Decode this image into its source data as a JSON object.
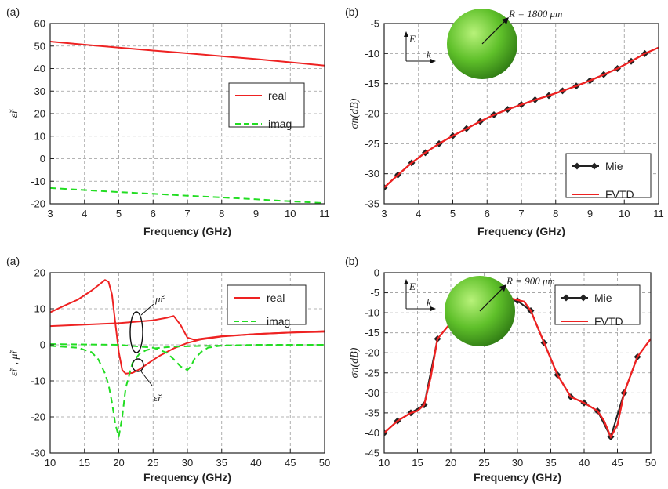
{
  "chart_data": [
    {
      "type": "line",
      "panel_label": "(a)",
      "xlabel": "Frequency (GHz)",
      "ylabel": "ε̆r",
      "xlim": [
        3,
        11
      ],
      "ylim": [
        -20,
        60
      ],
      "xticks": [
        3,
        4,
        5,
        6,
        7,
        8,
        9,
        10,
        11
      ],
      "yticks": [
        -20,
        -10,
        0,
        10,
        20,
        30,
        40,
        50,
        60
      ],
      "grid": true,
      "legend_position": "center-right",
      "series": [
        {
          "name": "real",
          "color": "#ee2222",
          "dash": "solid",
          "x": [
            3,
            4,
            5,
            6,
            7,
            8,
            9,
            10,
            11
          ],
          "y": [
            52,
            50.6,
            49.3,
            48,
            46.8,
            45.5,
            44.2,
            42.8,
            41.3
          ]
        },
        {
          "name": "imag",
          "color": "#22dd22",
          "dash": "dashed",
          "x": [
            3,
            4,
            5,
            6,
            7,
            8,
            9,
            10,
            11
          ],
          "y": [
            -13,
            -13.9,
            -14.8,
            -15.6,
            -16.4,
            -17.2,
            -18,
            -18.9,
            -19.7
          ]
        }
      ]
    },
    {
      "type": "line",
      "panel_label": "(b)",
      "xlabel": "Frequency (GHz)",
      "ylabel": "σn(dB)",
      "xlim": [
        3,
        11
      ],
      "ylim": [
        -35,
        -5
      ],
      "xticks": [
        3,
        4,
        5,
        6,
        7,
        8,
        9,
        10,
        11
      ],
      "yticks": [
        -35,
        -30,
        -25,
        -20,
        -15,
        -10,
        -5
      ],
      "grid": true,
      "legend_position": "bottom-right",
      "annotation": "R = 1800 μm",
      "inset": {
        "e_label": "E",
        "k_label": "k"
      },
      "series": [
        {
          "name": "Mie",
          "color": "#222222",
          "marker": "diamond",
          "x": [
            3,
            3.4,
            3.8,
            4.2,
            4.6,
            5,
            5.4,
            5.8,
            6.2,
            6.6,
            7,
            7.4,
            7.8,
            8.2,
            8.6,
            9,
            9.4,
            9.8,
            10.2,
            10.6
          ],
          "y": [
            -32.3,
            -30.2,
            -28.2,
            -26.5,
            -25,
            -23.7,
            -22.5,
            -21.3,
            -20.2,
            -19.3,
            -18.5,
            -17.7,
            -17,
            -16.2,
            -15.4,
            -14.5,
            -13.5,
            -12.5,
            -11.3,
            -10
          ]
        },
        {
          "name": "FVTD",
          "color": "#ee2222",
          "dash": "solid",
          "x": [
            3,
            3.4,
            3.8,
            4.2,
            4.6,
            5,
            5.4,
            5.8,
            6.2,
            6.6,
            7,
            7.4,
            7.8,
            8.2,
            8.6,
            9,
            9.4,
            9.8,
            10.2,
            10.6,
            11
          ],
          "y": [
            -32.3,
            -30.2,
            -28.2,
            -26.5,
            -25,
            -23.7,
            -22.5,
            -21.3,
            -20.2,
            -19.3,
            -18.5,
            -17.7,
            -17,
            -16.2,
            -15.4,
            -14.5,
            -13.5,
            -12.5,
            -11.3,
            -10,
            -9
          ]
        }
      ]
    },
    {
      "type": "line",
      "panel_label": "(a)",
      "xlabel": "Frequency (GHz)",
      "ylabel": "ε̆r , μ̆r",
      "xlim": [
        10,
        50
      ],
      "ylim": [
        -30,
        20
      ],
      "xticks": [
        10,
        15,
        20,
        25,
        30,
        35,
        40,
        45,
        50
      ],
      "yticks": [
        -30,
        -20,
        -10,
        0,
        10,
        20
      ],
      "grid": true,
      "legend_position": "top-right",
      "annotations": [
        "μ̆r",
        "ε̆r"
      ],
      "series": [
        {
          "name": "real",
          "color": "#ee2222",
          "dash": "solid",
          "x": [
            10,
            12,
            14,
            16,
            17,
            18,
            18.5,
            19,
            19.5,
            20,
            20.5,
            21,
            22,
            23,
            24,
            25,
            26,
            28,
            30,
            32,
            35,
            40,
            45,
            50
          ],
          "y": [
            9,
            10.8,
            12.5,
            15,
            16.5,
            18,
            17.5,
            14,
            6,
            -2,
            -7,
            -8,
            -7.8,
            -6.8,
            -5.5,
            -4.2,
            -3,
            -1,
            0.5,
            1.5,
            2.3,
            3,
            3.4,
            3.6
          ]
        },
        {
          "name": "",
          "color": "#ee2222",
          "dash": "solid",
          "x": [
            10,
            15,
            20,
            25,
            27,
            28,
            29,
            30,
            31,
            32,
            35,
            40,
            45,
            50
          ],
          "y": [
            5.2,
            5.6,
            6,
            6.8,
            7.5,
            8,
            5.5,
            2,
            1.4,
            1.7,
            2.4,
            3,
            3.4,
            3.8
          ]
        },
        {
          "name": "imag",
          "color": "#22dd22",
          "dash": "dashed",
          "x": [
            10,
            14,
            16,
            17,
            18,
            18.5,
            19,
            19.5,
            20,
            20.5,
            21,
            22,
            23,
            24,
            25,
            28,
            32,
            40,
            50
          ],
          "y": [
            -0.3,
            -0.8,
            -2,
            -4,
            -8,
            -11,
            -16,
            -22,
            -25.5,
            -20,
            -12,
            -5,
            -2.5,
            -1.5,
            -1,
            -0.5,
            -0.3,
            -0.1,
            0
          ]
        },
        {
          "name": "",
          "color": "#22dd22",
          "dash": "dashed",
          "x": [
            10,
            20,
            25,
            27,
            28,
            29,
            30,
            30.5,
            31,
            32,
            33,
            35,
            40,
            50
          ],
          "y": [
            0.2,
            0,
            -0.8,
            -2.2,
            -4,
            -6,
            -7,
            -6,
            -4,
            -2,
            -0.8,
            -0.2,
            0,
            0
          ]
        }
      ]
    },
    {
      "type": "line",
      "panel_label": "(b)",
      "xlabel": "Frequency (GHz)",
      "ylabel": "σn(dB)",
      "xlim": [
        10,
        50
      ],
      "ylim": [
        -45,
        0
      ],
      "xticks": [
        10,
        15,
        20,
        25,
        30,
        35,
        40,
        45,
        50
      ],
      "yticks": [
        -45,
        -40,
        -35,
        -30,
        -25,
        -20,
        -15,
        -10,
        -5,
        0
      ],
      "grid": true,
      "legend_position": "top-right",
      "annotation": "R = 900 μm",
      "inset": {
        "e_label": "E",
        "k_label": "k"
      },
      "series": [
        {
          "name": "Mie",
          "color": "#222222",
          "marker": "diamond",
          "x": [
            10,
            12,
            14,
            16,
            18,
            20,
            22,
            24,
            26,
            28,
            30,
            32,
            34,
            36,
            38,
            40,
            42,
            44,
            46,
            48
          ],
          "y": [
            -40,
            -37,
            -35,
            -33,
            -16.5,
            -12.5,
            -7.5,
            -2,
            -3.5,
            -6,
            -7,
            -9.5,
            -17.5,
            -25.5,
            -31,
            -32.5,
            -34.5,
            -41,
            -30,
            -21
          ]
        },
        {
          "name": "FVTD",
          "color": "#ee2222",
          "dash": "solid",
          "x": [
            10,
            12,
            14,
            15,
            16,
            17,
            18,
            20,
            22,
            24,
            25,
            26,
            28,
            30,
            31,
            32,
            34,
            36,
            38,
            40,
            42,
            43,
            44,
            45,
            46,
            48,
            50
          ],
          "y": [
            -40,
            -37,
            -35,
            -34.5,
            -33,
            -26,
            -16.5,
            -12.5,
            -7.5,
            -2,
            -2.3,
            -3.5,
            -6,
            -6.8,
            -7.2,
            -9.5,
            -17.5,
            -25.5,
            -31,
            -32.5,
            -34.5,
            -37,
            -41,
            -38,
            -30,
            -21,
            -16.5
          ]
        }
      ]
    }
  ]
}
